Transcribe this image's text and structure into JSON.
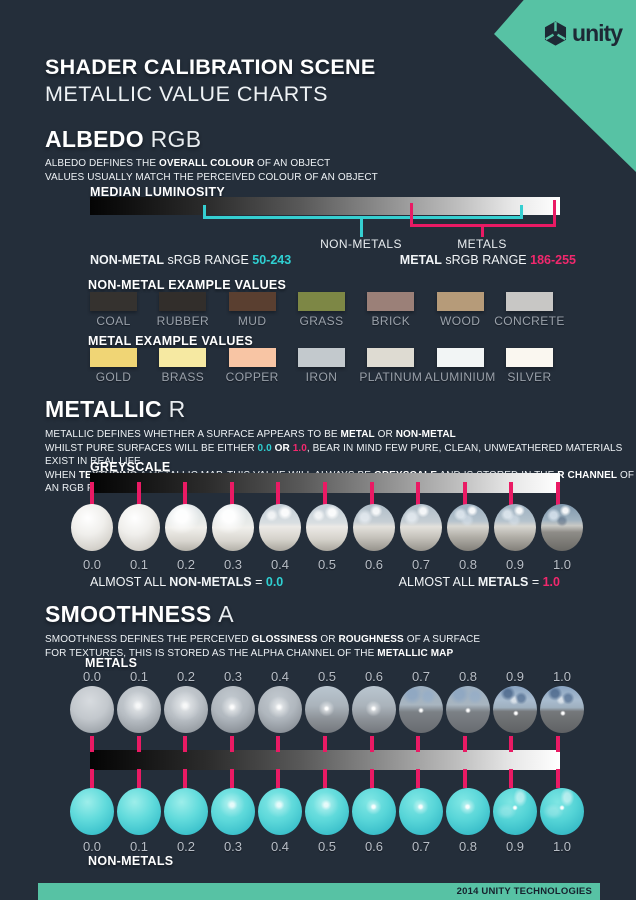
{
  "header": {
    "title": "SHADER CALIBRATION SCENE",
    "subtitle": "METALLIC VALUE CHARTS",
    "logo_text": "unity"
  },
  "albedo": {
    "heading": "ALBEDO",
    "heading_suffix": "RGB",
    "desc1_a": "ALBEDO DEFINES THE ",
    "desc1_b": "OVERALL COLOUR",
    "desc1_c": " OF AN OBJECT",
    "desc2": "VALUES USUALLY MATCH THE PERCEIVED COLOUR OF AN OBJECT",
    "bar_label": "MEDIAN LUMINOSITY",
    "nonmetals_bracket_label": "NON-METALS",
    "metals_bracket_label": "METALS",
    "nonmetal_range_a": "NON-METAL",
    "nonmetal_range_b": " sRGB RANGE ",
    "nonmetal_range_val": "50-243",
    "metal_range_a": "METAL",
    "metal_range_b": " sRGB RANGE ",
    "metal_range_val": "186-255",
    "nonmetal_examples_title": "NON-METAL EXAMPLE VALUES",
    "metal_examples_title": "METAL EXAMPLE VALUES",
    "nonmetal_examples": [
      {
        "label": "COAL",
        "color": "#35322f"
      },
      {
        "label": "RUBBER",
        "color": "#322e2b"
      },
      {
        "label": "MUD",
        "color": "#5a3f30"
      },
      {
        "label": "GRASS",
        "color": "#7d8745"
      },
      {
        "label": "BRICK",
        "color": "#9b8078"
      },
      {
        "label": "WOOD",
        "color": "#b69b79"
      },
      {
        "label": "CONCRETE",
        "color": "#c8c7c5"
      }
    ],
    "metal_examples": [
      {
        "label": "GOLD",
        "color": "#f0d575"
      },
      {
        "label": "BRASS",
        "color": "#f6e9a2"
      },
      {
        "label": "COPPER",
        "color": "#f8c5a4"
      },
      {
        "label": "IRON",
        "color": "#c3c9cd"
      },
      {
        "label": "PLATINUM",
        "color": "#dedbd2"
      },
      {
        "label": "ALUMINIUM",
        "color": "#f2f5f5"
      },
      {
        "label": "SILVER",
        "color": "#faf7f0"
      }
    ]
  },
  "metallic": {
    "heading": "METALLIC",
    "heading_suffix": "R",
    "desc1_a": "METALLIC DEFINES WHETHER A SURFACE APPEARS TO BE ",
    "desc1_b": "METAL",
    "desc1_c": " OR ",
    "desc1_d": "NON-METAL",
    "desc2_a": "WHILST PURE SURFACES WILL BE EITHER ",
    "desc2_val0": "0.0",
    "desc2_or": " OR ",
    "desc2_val1": "1.0",
    "desc2_b": ", BEAR IN MIND FEW PURE, CLEAN, UNWEATHERED MATERIALS EXIST IN REAL LIFE",
    "desc3_a": "WHEN ",
    "desc3_b": "TEXTURING",
    "desc3_c": " A METALLIC MAP, THIS VALUE WILL ALWAYS BE ",
    "desc3_d": "GREYSCALE",
    "desc3_e": " AND IS STORED IN THE ",
    "desc3_f": "R CHANNEL",
    "desc3_g": " OF AN RGB FILE",
    "bar_label": "GREYSCALE",
    "values": [
      "0.0",
      "0.1",
      "0.2",
      "0.3",
      "0.4",
      "0.5",
      "0.6",
      "0.7",
      "0.8",
      "0.9",
      "1.0"
    ],
    "note_left_a": "ALMOST ALL ",
    "note_left_b": "NON-METALS",
    "note_left_c": " = ",
    "note_left_val": "0.0",
    "note_right_a": "ALMOST ALL ",
    "note_right_b": "METALS",
    "note_right_c": " = ",
    "note_right_val": "1.0"
  },
  "smoothness": {
    "heading": "SMOOTHNESS",
    "heading_suffix": "A",
    "desc1_a": "SMOOTHNESS DEFINES THE PERCEIVED ",
    "desc1_b": "GLOSSINESS",
    "desc1_c": " OR ",
    "desc1_d": "ROUGHNESS",
    "desc1_e": " OF A SURFACE",
    "desc2_a": "FOR TEXTURES, THIS IS STORED AS THE ALPHA CHANNEL OF THE ",
    "desc2_b": "METALLIC MAP",
    "metals_label": "METALS",
    "nonmetals_label": "NON-METALS",
    "metals_values": [
      "0.0",
      "0.1",
      "0.2",
      "0.3",
      "0.4",
      "0.5",
      "0.6",
      "0.7",
      "0.8",
      "0.9",
      "1.0"
    ],
    "nonmetals_values": [
      "0.0",
      "0.1",
      "0.2",
      "0.3",
      "0.4",
      "0.5",
      "0.6",
      "0.7",
      "0.8",
      "0.9",
      "1.0"
    ]
  },
  "footer": {
    "text": "2014 UNITY TECHNOLOGIES"
  },
  "colors": {
    "background": "#242e3a",
    "brand_teal": "#57c2a4",
    "accent_cyan": "#2fd0d2",
    "accent_pink": "#ea1a64"
  }
}
